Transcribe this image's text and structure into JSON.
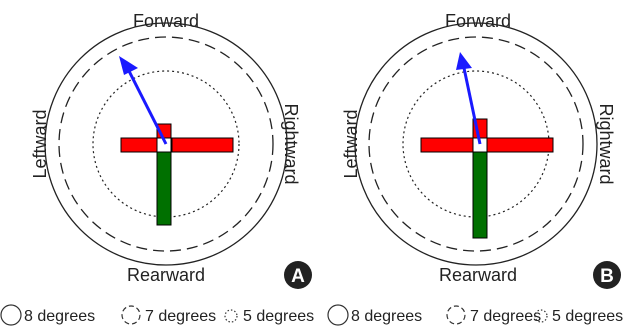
{
  "directions": {
    "forward": "Forward",
    "rearward": "Rearward",
    "leftward": "Leftward",
    "rightward": "Rightward"
  },
  "panels": [
    {
      "badge": "A"
    },
    {
      "badge": "B"
    }
  ],
  "legend": [
    {
      "label": "8 degrees"
    },
    {
      "label": "7 degrees"
    },
    {
      "label": "5 degrees"
    }
  ],
  "colors": {
    "circle": "#222222",
    "lateral_bar": "#ff0000",
    "rear_bar": "#007000",
    "arrow": "#1a1aff",
    "badge_fill": "#222222",
    "badge_text": "#ffffff"
  }
}
